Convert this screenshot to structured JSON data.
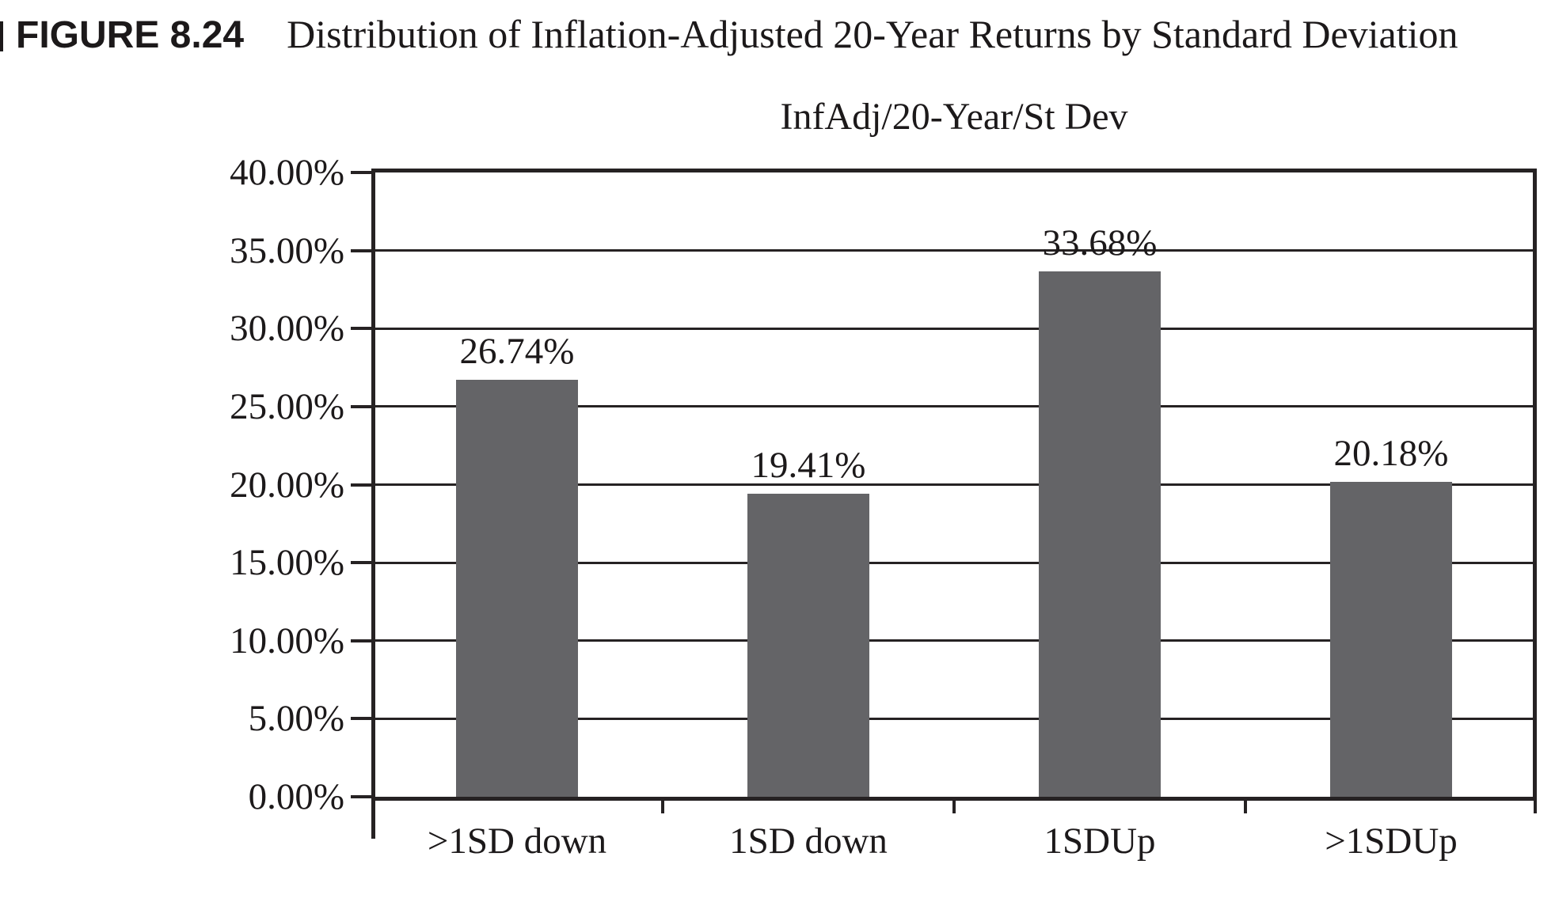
{
  "figure": {
    "label": "FIGURE 8.24",
    "title": "Distribution of Inflation-Adjusted 20-Year Returns by Standard Deviation"
  },
  "chart_data": {
    "type": "bar",
    "title": "InfAdj/20-Year/St Dev",
    "categories": [
      ">1SD down",
      "1SD down",
      "1SDUp",
      ">1SDUp"
    ],
    "values": [
      26.74,
      19.41,
      33.68,
      20.18
    ],
    "value_labels": [
      "26.74%",
      "19.41%",
      "33.68%",
      "20.18%"
    ],
    "ylabel": "",
    "xlabel": "",
    "ylim": [
      0,
      40
    ],
    "ytick_step": 5,
    "ytick_labels": [
      "0.00%",
      "5.00%",
      "10.00%",
      "15.00%",
      "20.00%",
      "25.00%",
      "30.00%",
      "35.00%",
      "40.00%"
    ],
    "grid": true,
    "legend": false,
    "bar_color": "#646467",
    "line_color": "#262223",
    "text_color": "#1c191a"
  }
}
